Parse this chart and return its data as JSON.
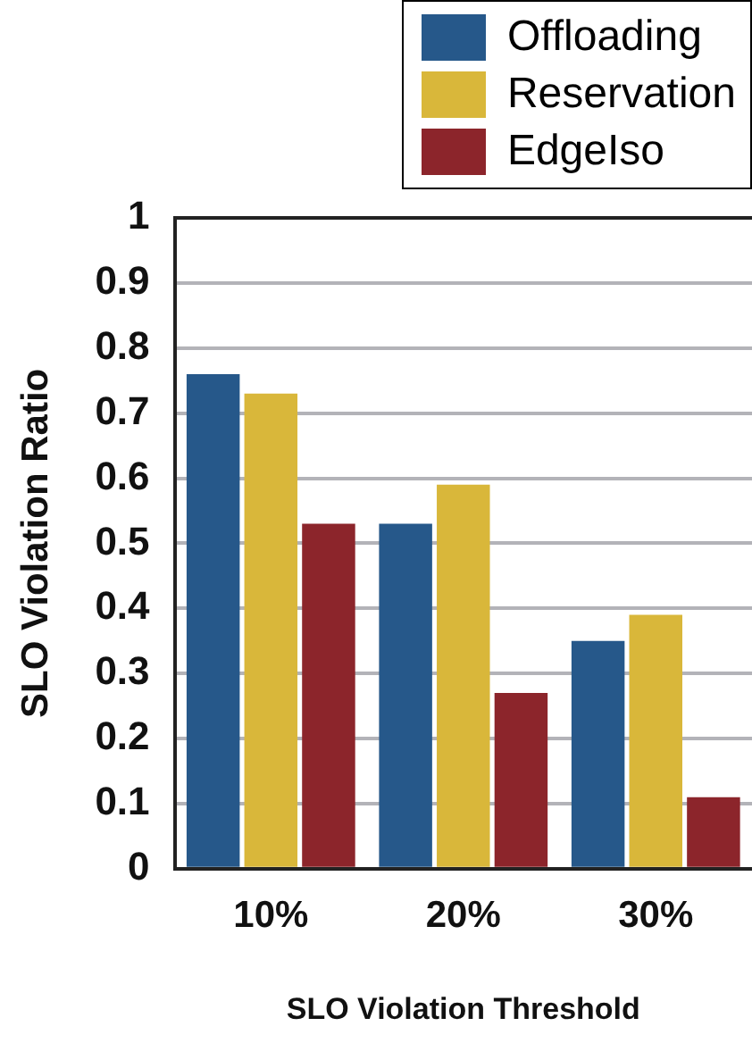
{
  "chart_data": {
    "type": "bar",
    "xlabel": "SLO Violation Threshold",
    "ylabel": "SLO Violation Ratio",
    "categories": [
      "10%",
      "20%",
      "30%"
    ],
    "series": [
      {
        "name": "Offloading",
        "color": "#26588a",
        "values": [
          0.76,
          0.53,
          0.35
        ]
      },
      {
        "name": "Reservation",
        "color": "#d9b73a",
        "values": [
          0.73,
          0.59,
          0.39
        ]
      },
      {
        "name": "EdgeIso",
        "color": "#8c252b",
        "values": [
          0.53,
          0.27,
          0.11
        ]
      }
    ],
    "ylim": [
      0,
      1
    ],
    "yticks": [
      0,
      0.1,
      0.2,
      0.3,
      0.4,
      0.5,
      0.6,
      0.7,
      0.8,
      0.9,
      1
    ],
    "grid": "y",
    "legend": "top right"
  }
}
